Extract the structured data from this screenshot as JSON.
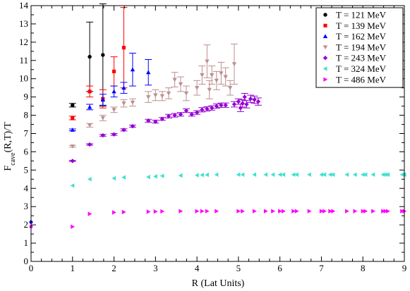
{
  "chart_data": {
    "type": "scatter",
    "title": "",
    "xlabel": "R (Lat Units)",
    "ylabel_main": "F",
    "ylabel_sub": "cave",
    "ylabel_rest": "(R,T)/T",
    "xlim": [
      0,
      9
    ],
    "ylim": [
      0,
      14
    ],
    "xticks": [
      0,
      1,
      2,
      3,
      4,
      5,
      6,
      7,
      8,
      9
    ],
    "yticks": [
      0,
      1,
      2,
      3,
      4,
      5,
      6,
      7,
      8,
      9,
      10,
      11,
      12,
      13,
      14
    ],
    "grid": false,
    "legend_position": "top-right",
    "series": [
      {
        "name": "T = 121 MeV",
        "color": "#000000",
        "marker": "circle",
        "points": [
          {
            "x": 1.0,
            "y": 8.55,
            "err": 0.1
          },
          {
            "x": 1.414,
            "y": 11.2,
            "err": 1.9
          },
          {
            "x": 1.732,
            "y": 11.3,
            "err": 2.8
          }
        ]
      },
      {
        "name": "T = 139 MeV",
        "color": "#ff0000",
        "marker": "square",
        "points": [
          {
            "x": 1.0,
            "y": 7.85,
            "err": 0.1
          },
          {
            "x": 1.414,
            "y": 9.3,
            "err": 0.3
          },
          {
            "x": 1.732,
            "y": 8.9,
            "err": 0.5
          },
          {
            "x": 2.0,
            "y": 10.4,
            "err": 0.8
          },
          {
            "x": 2.236,
            "y": 11.7,
            "err": 2.2
          }
        ]
      },
      {
        "name": "T = 162 MeV",
        "color": "#0000ff",
        "marker": "triangle-up",
        "points": [
          {
            "x": 1.0,
            "y": 7.2,
            "err": 0.05
          },
          {
            "x": 1.414,
            "y": 8.45,
            "err": 0.15
          },
          {
            "x": 1.732,
            "y": 8.85,
            "err": 0.3
          },
          {
            "x": 2.0,
            "y": 9.3,
            "err": 0.3
          },
          {
            "x": 2.236,
            "y": 9.5,
            "err": 0.3
          },
          {
            "x": 2.449,
            "y": 10.5,
            "err": 0.9
          },
          {
            "x": 2.828,
            "y": 10.35,
            "err": 0.7
          }
        ]
      },
      {
        "name": "T = 194 MeV",
        "color": "#bc8f8f",
        "marker": "triangle-down",
        "points": [
          {
            "x": 1.0,
            "y": 6.3,
            "err": 0.05
          },
          {
            "x": 1.414,
            "y": 7.45,
            "err": 0.1
          },
          {
            "x": 1.732,
            "y": 7.85,
            "err": 0.15
          },
          {
            "x": 2.0,
            "y": 8.3,
            "err": 0.15
          },
          {
            "x": 2.236,
            "y": 8.65,
            "err": 0.2
          },
          {
            "x": 2.449,
            "y": 8.7,
            "err": 0.2
          },
          {
            "x": 2.828,
            "y": 9.0,
            "err": 0.3
          },
          {
            "x": 3.0,
            "y": 9.1,
            "err": 0.3
          },
          {
            "x": 3.162,
            "y": 9.05,
            "err": 0.25
          },
          {
            "x": 3.317,
            "y": 9.2,
            "err": 0.3
          },
          {
            "x": 3.464,
            "y": 9.95,
            "err": 0.4
          },
          {
            "x": 3.606,
            "y": 9.7,
            "err": 0.4
          },
          {
            "x": 3.742,
            "y": 9.2,
            "err": 0.4
          },
          {
            "x": 4.0,
            "y": 9.5,
            "err": 0.4
          },
          {
            "x": 4.123,
            "y": 10.2,
            "err": 0.5
          },
          {
            "x": 4.243,
            "y": 10.95,
            "err": 0.9
          },
          {
            "x": 4.359,
            "y": 10.2,
            "err": 0.5
          },
          {
            "x": 4.472,
            "y": 9.9,
            "err": 0.5
          },
          {
            "x": 4.583,
            "y": 10.3,
            "err": 0.6
          },
          {
            "x": 4.69,
            "y": 10.1,
            "err": 0.5
          },
          {
            "x": 4.899,
            "y": 10.8,
            "err": 1.1
          },
          {
            "x": 4.3,
            "y": 9.4,
            "err": 0.5
          },
          {
            "x": 4.8,
            "y": 9.5,
            "err": 0.4
          }
        ]
      },
      {
        "name": "T = 243 MeV",
        "color": "#9400d3",
        "marker": "diamond",
        "points": [
          {
            "x": 1.0,
            "y": 5.5,
            "err": 0.03
          },
          {
            "x": 1.414,
            "y": 6.4,
            "err": 0.04
          },
          {
            "x": 1.732,
            "y": 6.9,
            "err": 0.05
          },
          {
            "x": 2.0,
            "y": 6.95,
            "err": 0.05
          },
          {
            "x": 2.236,
            "y": 7.2,
            "err": 0.06
          },
          {
            "x": 2.449,
            "y": 7.4,
            "err": 0.06
          },
          {
            "x": 2.828,
            "y": 7.7,
            "err": 0.08
          },
          {
            "x": 3.0,
            "y": 7.65,
            "err": 0.08
          },
          {
            "x": 3.162,
            "y": 7.8,
            "err": 0.08
          },
          {
            "x": 3.317,
            "y": 7.95,
            "err": 0.1
          },
          {
            "x": 3.464,
            "y": 8.0,
            "err": 0.1
          },
          {
            "x": 3.606,
            "y": 8.05,
            "err": 0.1
          },
          {
            "x": 3.742,
            "y": 8.25,
            "err": 0.1
          },
          {
            "x": 3.873,
            "y": 8.05,
            "err": 0.1
          },
          {
            "x": 4.0,
            "y": 8.15,
            "err": 0.1
          },
          {
            "x": 4.123,
            "y": 8.3,
            "err": 0.12
          },
          {
            "x": 4.243,
            "y": 8.35,
            "err": 0.12
          },
          {
            "x": 4.359,
            "y": 8.4,
            "err": 0.12
          },
          {
            "x": 4.472,
            "y": 8.5,
            "err": 0.12
          },
          {
            "x": 4.583,
            "y": 8.55,
            "err": 0.12
          },
          {
            "x": 4.69,
            "y": 8.55,
            "err": 0.12
          },
          {
            "x": 4.899,
            "y": 8.6,
            "err": 0.15
          },
          {
            "x": 5.0,
            "y": 8.75,
            "err": 0.15
          },
          {
            "x": 5.099,
            "y": 8.65,
            "err": 0.2
          },
          {
            "x": 5.196,
            "y": 8.6,
            "err": 0.2
          },
          {
            "x": 5.292,
            "y": 8.9,
            "err": 0.2
          },
          {
            "x": 5.385,
            "y": 8.85,
            "err": 0.2
          },
          {
            "x": 5.477,
            "y": 8.75,
            "err": 0.2
          },
          {
            "x": 5.05,
            "y": 8.4,
            "err": 0.2
          },
          {
            "x": 5.15,
            "y": 9.0,
            "err": 0.2
          }
        ]
      },
      {
        "name": "T = 324 MeV",
        "color": "#40e0d0",
        "marker": "triangle-left",
        "y_values": [
          4.15,
          4.5,
          4.55,
          4.6,
          4.62,
          4.65,
          4.68,
          4.7,
          4.72,
          4.73,
          4.74,
          4.75
        ],
        "band_y": 4.75
      },
      {
        "name": "T = 486 MeV",
        "color": "#ff00ff",
        "marker": "triangle-right",
        "y_values": [
          1.9,
          2.6,
          2.68,
          2.7,
          2.72,
          2.73,
          2.74,
          2.75,
          2.75,
          2.75
        ],
        "band_y": 2.75
      }
    ],
    "origin_points": [
      {
        "x": 0.0,
        "y": 2.15,
        "color": "#0000ff"
      },
      {
        "x": 0.0,
        "y": 1.9,
        "color": "#ff00ff"
      }
    ]
  }
}
